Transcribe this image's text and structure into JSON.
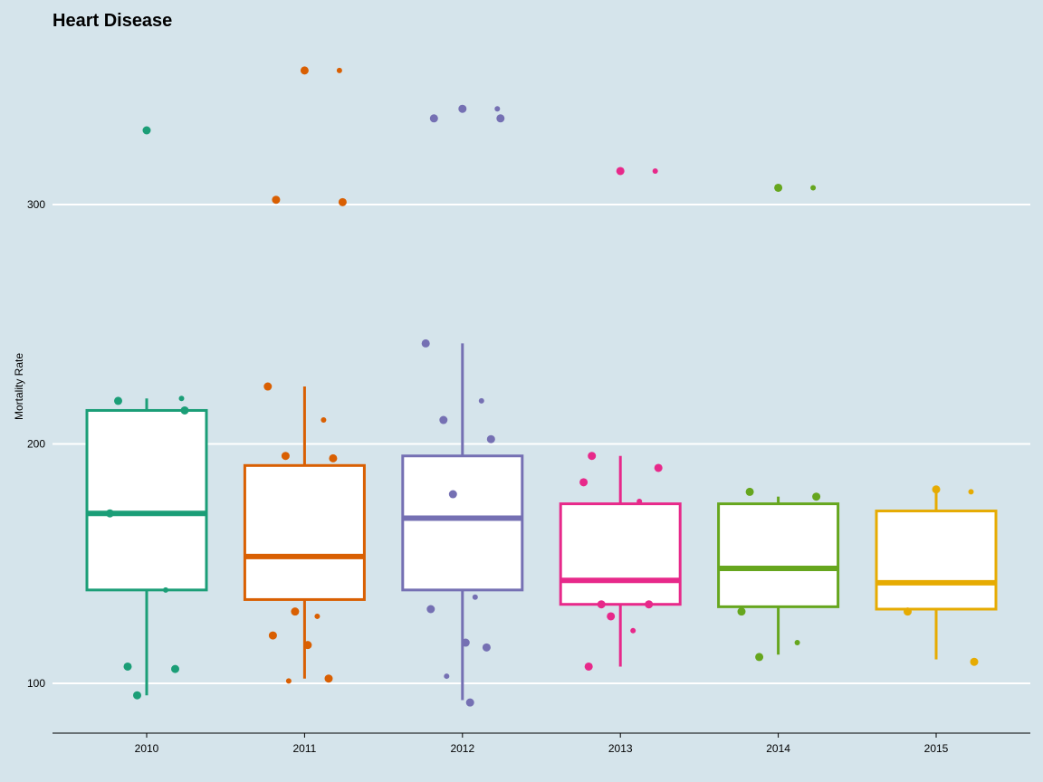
{
  "chart_data": {
    "type": "box",
    "title": "Heart Disease",
    "xlabel": "",
    "ylabel": "Mortality Rate",
    "categories": [
      "2010",
      "2011",
      "2012",
      "2013",
      "2014",
      "2015"
    ],
    "y_ticks": [
      100,
      200,
      300
    ],
    "ylim": [
      80,
      370
    ],
    "grid": "horizontal major",
    "legend": "none",
    "colors": [
      "#1b9e77",
      "#d95f02",
      "#7570b3",
      "#e7298a",
      "#66a61e",
      "#e6ab02"
    ],
    "boxes": [
      {
        "category": "2010",
        "whisker_low": 95,
        "q1": 139,
        "median": 171,
        "q3": 214,
        "whisker_high": 219
      },
      {
        "category": "2011",
        "whisker_low": 102,
        "q1": 135,
        "median": 153,
        "q3": 191,
        "whisker_high": 224
      },
      {
        "category": "2012",
        "whisker_low": 93,
        "q1": 139,
        "median": 169,
        "q3": 195,
        "whisker_high": 242
      },
      {
        "category": "2013",
        "whisker_low": 107,
        "q1": 133,
        "median": 143,
        "q3": 175,
        "whisker_high": 195
      },
      {
        "category": "2014",
        "whisker_low": 112,
        "q1": 132,
        "median": 148,
        "q3": 175,
        "whisker_high": 178
      },
      {
        "category": "2015",
        "whisker_low": 110,
        "q1": 131,
        "median": 142,
        "q3": 172,
        "whisker_high": 181
      }
    ],
    "points": [
      {
        "category": "2010",
        "values": [
          331,
          219,
          218,
          214,
          171,
          139,
          107,
          106,
          95
        ]
      },
      {
        "category": "2011",
        "values": [
          356,
          356,
          302,
          301,
          224,
          210,
          195,
          194,
          130,
          128,
          120,
          116,
          102,
          101
        ]
      },
      {
        "category": "2012",
        "values": [
          340,
          340,
          336,
          336,
          242,
          218,
          210,
          202,
          179,
          136,
          131,
          117,
          115,
          103,
          92
        ]
      },
      {
        "category": "2013",
        "values": [
          314,
          314,
          195,
          190,
          184,
          176,
          133,
          133,
          128,
          122,
          107
        ]
      },
      {
        "category": "2014",
        "values": [
          307,
          307,
          180,
          178,
          130,
          117,
          111
        ]
      },
      {
        "category": "2015",
        "values": [
          181,
          180,
          130,
          109
        ]
      }
    ]
  }
}
